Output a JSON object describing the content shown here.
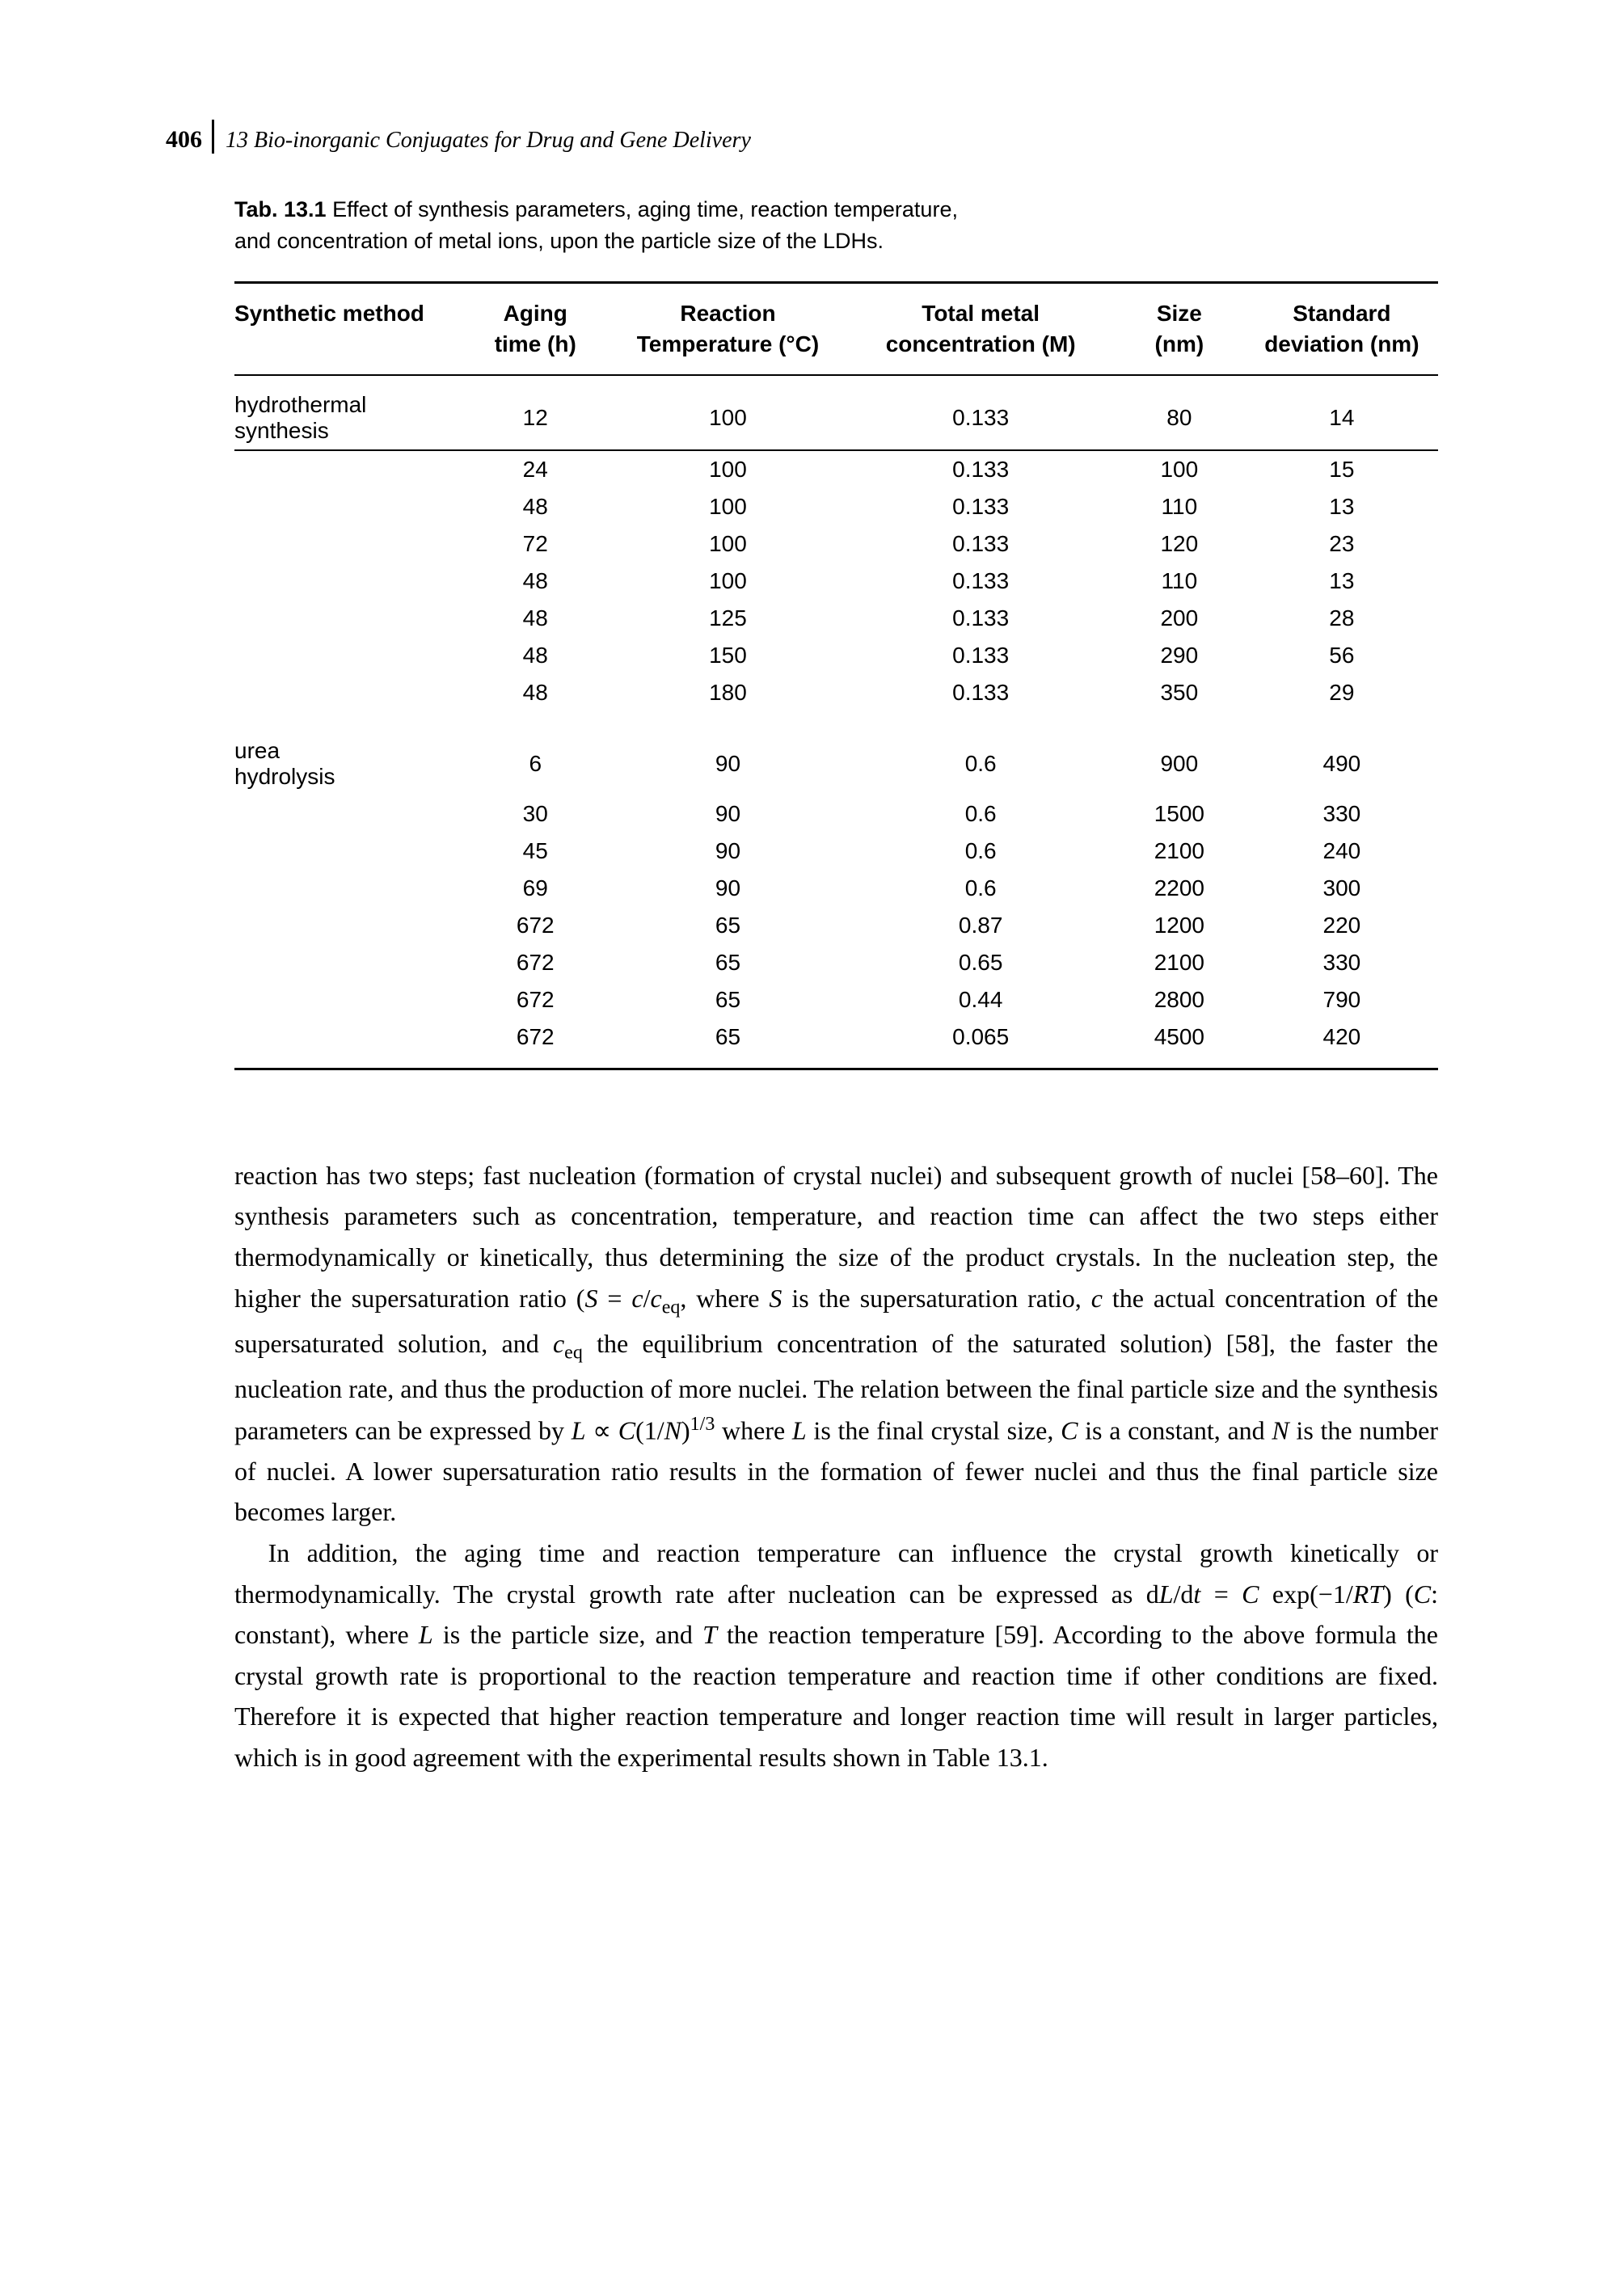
{
  "header": {
    "page_number": "406",
    "chapter": "13 Bio-inorganic Conjugates for Drug and Gene Delivery"
  },
  "table": {
    "caption_label": "Tab. 13.1",
    "caption_text": "Effect of synthesis parameters, aging time, reaction temperature, and concentration of metal ions, upon the particle size of the LDHs.",
    "columns": [
      "Synthetic method",
      "Aging time (h)",
      "Reaction Temperature (°C)",
      "Total metal concentration (M)",
      "Size (nm)",
      "Standard deviation (nm)"
    ],
    "rows": [
      [
        "hydrothermal synthesis",
        "12",
        "100",
        "0.133",
        "80",
        "14"
      ],
      [
        "",
        "24",
        "100",
        "0.133",
        "100",
        "15"
      ],
      [
        "",
        "48",
        "100",
        "0.133",
        "110",
        "13"
      ],
      [
        "",
        "72",
        "100",
        "0.133",
        "120",
        "23"
      ],
      [
        "",
        "48",
        "100",
        "0.133",
        "110",
        "13"
      ],
      [
        "",
        "48",
        "125",
        "0.133",
        "200",
        "28"
      ],
      [
        "",
        "48",
        "150",
        "0.133",
        "290",
        "56"
      ],
      [
        "",
        "48",
        "180",
        "0.133",
        "350",
        "29"
      ],
      [
        "urea hydrolysis",
        "6",
        "90",
        "0.6",
        "900",
        "490"
      ],
      [
        "",
        "30",
        "90",
        "0.6",
        "1500",
        "330"
      ],
      [
        "",
        "45",
        "90",
        "0.6",
        "2100",
        "240"
      ],
      [
        "",
        "69",
        "90",
        "0.6",
        "2200",
        "300"
      ],
      [
        "",
        "672",
        "65",
        "0.87",
        "1200",
        "220"
      ],
      [
        "",
        "672",
        "65",
        "0.65",
        "2100",
        "330"
      ],
      [
        "",
        "672",
        "65",
        "0.44",
        "2800",
        "790"
      ],
      [
        "",
        "672",
        "65",
        "0.065",
        "4500",
        "420"
      ]
    ],
    "group_starts": [
      0,
      8
    ],
    "group_ends": [
      7,
      15
    ],
    "col_widths": [
      "19%",
      "12%",
      "20%",
      "22%",
      "11%",
      "16%"
    ]
  },
  "paragraphs": {
    "p1_parts": [
      "reaction has two steps; fast nucleation (formation of crystal nuclei) and subsequent growth of nuclei [58–60]. The synthesis parameters such as concentration, temperature, and reaction time can affect the two steps either thermodynamically or kinetically, thus determining the size of the product crystals. In the nucleation step, the higher the supersaturation ratio (",
      "S",
      " = ",
      "c",
      "/",
      "c",
      "eq",
      ", where ",
      "S",
      " is the supersaturation ratio, ",
      "c",
      " the actual concentration of the supersaturated solution, and ",
      "c",
      "eq",
      " the equilibrium concentration of the saturated solution) [58], the faster the nucleation rate, and thus the production of more nuclei. The relation between the final particle size and the synthesis parameters can be expressed by ",
      "L",
      " ∝ ",
      "C",
      "(1/",
      "N",
      ")",
      "1/3",
      " where ",
      "L",
      " is the final crystal size, ",
      "C",
      " is a constant, and ",
      "N",
      " is the number of nuclei. A lower supersaturation ratio results in the formation of fewer nuclei and thus the final particle size becomes larger."
    ],
    "p2_parts": [
      "In addition, the aging time and reaction temperature can influence the crystal growth kinetically or thermodynamically. The crystal growth rate after nucleation can be expressed as d",
      "L",
      "/d",
      "t",
      " = ",
      "C",
      " exp(−1/",
      "RT",
      ") (",
      "C",
      ": constant), where ",
      "L",
      " is the particle size, and ",
      "T",
      " the reaction temperature [59]. According to the above formula the crystal growth rate is proportional to the reaction temperature and reaction time if other conditions are fixed. Therefore it is expected that higher reaction temperature and longer reaction time will result in larger particles, which is in good agreement with the experimental results shown in Table 13.1."
    ]
  }
}
